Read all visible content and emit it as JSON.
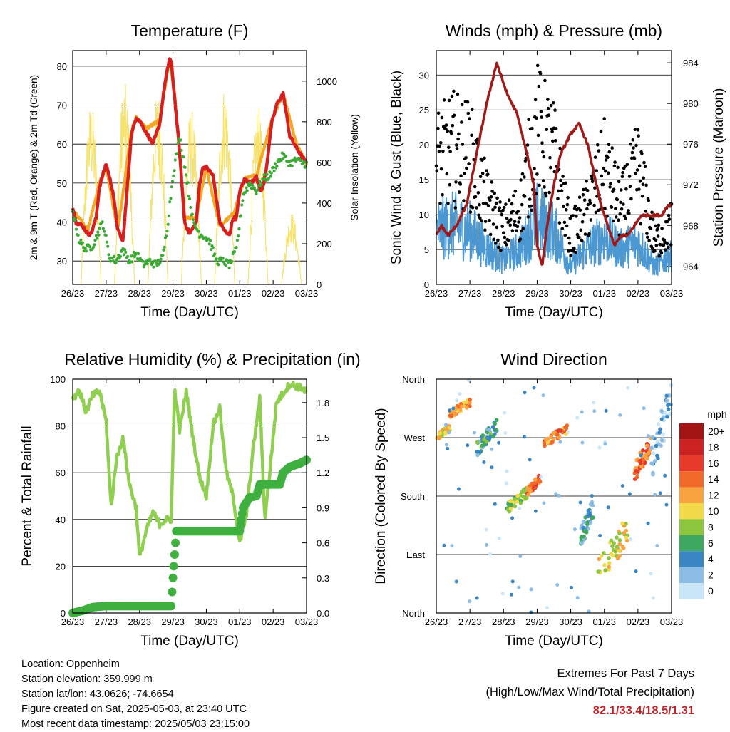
{
  "x_ticks": [
    "26/23",
    "27/23",
    "28/23",
    "29/23",
    "30/23",
    "01/23",
    "02/23",
    "03/23"
  ],
  "xlabel": "Time (Day/UTC)",
  "colors": {
    "red": "#d62020",
    "orange": "#f5a623",
    "green_dew": "#3aaa35",
    "yellow": "#f7e26b",
    "blue": "#4a97d2",
    "black": "#000000",
    "maroon": "#a01a1a",
    "rh": "#8fcf50",
    "precip": "#3fb040"
  },
  "info": {
    "location": "Location: Oppenheim",
    "elevation": "Station elevation: 359.999 m",
    "latlon": "Station lat/lon: 43.0626; -74.6654",
    "created": "Figure created on Sat, 2025-05-03, at 23:40 UTC",
    "recent": "Most recent data timestamp: 2025/05/03 23:15:00"
  },
  "extremes": {
    "line1": "Extremes For Past 7 Days",
    "line2": "(High/Low/Max Wind/Total Precipitation)",
    "value": "82.1/33.4/18.5/1.31"
  },
  "chart_data": [
    {
      "type": "line",
      "title": "Temperature (F)",
      "ylabel": "2m & 9m T (Red, Orange) & 2m Td (Green)",
      "y2label": "Solar Insolation (Yellow)",
      "ylim": [
        24,
        84
      ],
      "yticks": [
        30,
        40,
        50,
        60,
        70,
        80
      ],
      "y2lim": [
        0,
        1150
      ],
      "y2ticks": [
        0,
        200,
        400,
        600,
        800,
        1000
      ],
      "series": [
        {
          "name": "2m T",
          "color": "red",
          "axis": "left",
          "x": [
            0,
            0.1,
            0.3,
            0.45,
            0.55,
            0.7,
            0.8,
            1.0,
            1.2,
            1.35,
            1.5,
            1.6,
            1.75,
            1.9,
            2.0,
            2.2,
            2.4,
            2.6,
            2.75,
            2.9,
            2.95,
            3.05,
            3.2,
            3.35,
            3.5,
            3.7,
            3.8,
            3.9,
            4.0,
            4.2,
            4.4,
            4.6,
            4.7,
            4.8,
            4.9,
            5.0,
            5.15,
            5.35,
            5.5,
            5.6,
            5.7,
            5.8,
            5.95,
            6.1,
            6.3,
            6.5,
            6.7,
            6.85,
            7.0
          ],
          "y": [
            44,
            40,
            39,
            37,
            37,
            41,
            49,
            55,
            48,
            38,
            35,
            45,
            62,
            67,
            66,
            63,
            60,
            65,
            75,
            82,
            81,
            72,
            58,
            40,
            37,
            40,
            50,
            54,
            54,
            52,
            40,
            37,
            37,
            41,
            41,
            48,
            51,
            50,
            52,
            48,
            49,
            54,
            65,
            70,
            73,
            62,
            59,
            57,
            55
          ]
        },
        {
          "name": "9m T",
          "color": "orange",
          "axis": "left",
          "x": [
            0,
            0.45,
            0.8,
            1.0,
            1.35,
            1.75,
            1.9,
            2.2,
            2.6,
            2.9,
            3.05,
            3.35,
            3.7,
            4.0,
            4.4,
            4.8,
            5.15,
            5.5,
            5.95,
            6.3,
            6.7,
            7.0
          ],
          "y": [
            43,
            38,
            50,
            54,
            38,
            63,
            67,
            64,
            66,
            82,
            73,
            41,
            41,
            54,
            39,
            42,
            51,
            52,
            66,
            73,
            60,
            55
          ]
        },
        {
          "name": "2m Td",
          "color": "green_dew",
          "axis": "left",
          "x": [
            0,
            0.2,
            0.4,
            0.6,
            0.9,
            1.1,
            1.3,
            1.5,
            1.7,
            1.9,
            2.1,
            2.3,
            2.5,
            2.7,
            2.85,
            3.0,
            3.2,
            3.4,
            3.6,
            3.8,
            4.0,
            4.1,
            4.3,
            4.5,
            4.7,
            4.9,
            5.1,
            5.3,
            5.5,
            5.7,
            5.9,
            6.1,
            6.3,
            6.5,
            6.7,
            6.9,
            7.0
          ],
          "y": [
            43,
            35,
            33,
            34,
            40,
            31,
            30,
            33,
            30,
            32,
            29,
            30,
            29,
            31,
            40,
            52,
            62,
            52,
            40,
            37,
            36,
            35,
            30,
            30,
            29,
            33,
            47,
            50,
            48,
            51,
            52,
            55,
            57,
            55,
            56,
            55,
            55
          ]
        },
        {
          "name": "Solar Insolation",
          "color": "yellow",
          "axis": "right",
          "peaks_x": [
            0.55,
            1.55,
            2.55,
            3.55,
            4.55,
            5.55,
            6.55
          ],
          "peaks_y": [
            900,
            1000,
            960,
            870,
            990,
            880,
            360
          ]
        }
      ]
    },
    {
      "type": "scatter",
      "title": "Winds (mph) & Pressure (mb)",
      "ylabel": "Sonic Wind & Gust (Blue, Black)",
      "y2label": "Station Pressure (Maroon)",
      "ylim": [
        0,
        33.5
      ],
      "yticks": [
        0,
        5,
        10,
        15,
        20,
        25,
        30
      ],
      "y2lim": [
        962.2,
        985.2
      ],
      "y2ticks": [
        964,
        968,
        972,
        976,
        980,
        984
      ],
      "series": [
        {
          "name": "Gust",
          "color": "black",
          "axis": "left",
          "x": [
            0,
            0.5,
            1.0,
            1.5,
            2.0,
            2.5,
            3.0,
            3.5,
            4.0,
            4.5,
            5.0,
            5.5,
            6.0,
            6.5,
            7.0
          ],
          "y": [
            18,
            20,
            19,
            12,
            8,
            11,
            23,
            19,
            7,
            11,
            17,
            11,
            17,
            6,
            9
          ]
        },
        {
          "name": "Sonic Wind",
          "color": "blue",
          "axis": "left",
          "x": [
            0,
            0.5,
            1.0,
            1.5,
            2.0,
            2.5,
            3.0,
            3.5,
            4.0,
            4.5,
            5.0,
            5.5,
            6.0,
            6.5,
            7.0
          ],
          "y": [
            9,
            10,
            9,
            6,
            4,
            6,
            11,
            9,
            3,
            6,
            8,
            6,
            7,
            3,
            5
          ]
        },
        {
          "name": "Station Pressure",
          "color": "maroon",
          "axis": "right",
          "x": [
            0,
            0.15,
            0.35,
            0.6,
            0.9,
            1.2,
            1.5,
            1.8,
            2.1,
            2.4,
            2.7,
            2.9,
            3.0,
            3.15,
            3.3,
            3.5,
            3.7,
            3.85,
            4.0,
            4.25,
            4.5,
            4.7,
            4.9,
            5.1,
            5.3,
            5.5,
            5.7,
            5.9,
            6.1,
            6.3,
            6.5,
            6.7,
            6.9,
            7.0
          ],
          "y": [
            967,
            968,
            967,
            968,
            970,
            975,
            980,
            984,
            981,
            979,
            975,
            972,
            966,
            964,
            968,
            972,
            975,
            976,
            977,
            978,
            976,
            973,
            970,
            968,
            966,
            967,
            967,
            968,
            969,
            969,
            969,
            969,
            970,
            970
          ]
        }
      ]
    },
    {
      "type": "line",
      "title": "Relative Humidity (%) & Precipitation (in)",
      "ylabel": "Percent & Total Rainfall",
      "ylim": [
        0,
        100
      ],
      "yticks": [
        0,
        20,
        40,
        60,
        80,
        100
      ],
      "y2lim": [
        0,
        2.0
      ],
      "y2ticks": [
        "0.0",
        "0.3",
        "0.6",
        "0.9",
        "1.2",
        "1.5",
        "1.8"
      ],
      "series": [
        {
          "name": "Relative Humidity",
          "color": "rh",
          "axis": "left",
          "x": [
            0,
            0.2,
            0.4,
            0.6,
            0.8,
            1.0,
            1.15,
            1.3,
            1.5,
            1.7,
            1.9,
            2.0,
            2.2,
            2.4,
            2.6,
            2.8,
            2.95,
            3.05,
            3.2,
            3.4,
            3.6,
            3.8,
            4.0,
            4.2,
            4.4,
            4.6,
            4.8,
            5.0,
            5.2,
            5.4,
            5.6,
            5.75,
            5.9,
            6.1,
            6.3,
            6.5,
            6.7,
            6.9,
            7.0
          ],
          "y": [
            92,
            95,
            86,
            93,
            95,
            82,
            45,
            65,
            75,
            55,
            45,
            24,
            35,
            43,
            38,
            40,
            40,
            96,
            78,
            95,
            75,
            58,
            50,
            80,
            88,
            60,
            50,
            30,
            42,
            70,
            92,
            40,
            60,
            90,
            94,
            98,
            97,
            96,
            94
          ]
        },
        {
          "name": "Total Precipitation",
          "color": "precip",
          "axis": "right",
          "x": [
            0,
            0.3,
            0.6,
            1.0,
            1.5,
            2.0,
            2.5,
            2.95,
            3.0,
            3.05,
            3.1,
            4.0,
            4.5,
            5.0,
            5.05,
            5.1,
            5.3,
            5.5,
            5.6,
            6.0,
            6.2,
            6.3,
            6.5,
            6.8,
            7.0
          ],
          "y": [
            0.0,
            0.02,
            0.05,
            0.06,
            0.06,
            0.06,
            0.06,
            0.06,
            0.3,
            0.5,
            0.7,
            0.7,
            0.7,
            0.7,
            0.8,
            0.9,
            0.99,
            1.0,
            1.1,
            1.1,
            1.1,
            1.2,
            1.25,
            1.28,
            1.31
          ]
        }
      ]
    },
    {
      "type": "scatter",
      "title": "Wind Direction",
      "ylabel": "Direction (Colored By Speed)",
      "yticks": [
        "North",
        "East",
        "South",
        "West",
        "North"
      ],
      "ylim": [
        0,
        360
      ],
      "colorbar_title": "mph",
      "colorbar_labels": [
        "20+",
        "18",
        "16",
        "14",
        "12",
        "10",
        "8",
        "6",
        "4",
        "2",
        "0"
      ],
      "colorbar_colors": [
        "#a31515",
        "#cc2222",
        "#e83a2a",
        "#f26a2a",
        "#f9a340",
        "#f1d94a",
        "#8cc63f",
        "#3ea760",
        "#3a86c5",
        "#8bbde6",
        "#c9e6f8"
      ],
      "clusters": [
        {
          "x": [
            0,
            0.4
          ],
          "y": [
            265,
            290
          ],
          "speed": 10
        },
        {
          "x": [
            0.4,
            1.0
          ],
          "y": [
            300,
            330
          ],
          "speed": 12
        },
        {
          "x": [
            1.2,
            1.8
          ],
          "y": [
            240,
            300
          ],
          "speed": 5
        },
        {
          "x": [
            2.1,
            2.7
          ],
          "y": [
            150,
            195
          ],
          "speed": 8
        },
        {
          "x": [
            2.7,
            3.1
          ],
          "y": [
            180,
            215
          ],
          "speed": 14
        },
        {
          "x": [
            3.2,
            3.9
          ],
          "y": [
            255,
            290
          ],
          "speed": 13
        },
        {
          "x": [
            4.3,
            4.7
          ],
          "y": [
            100,
            180
          ],
          "speed": 4
        },
        {
          "x": [
            4.8,
            5.7
          ],
          "y": [
            40,
            150
          ],
          "speed": 10
        },
        {
          "x": [
            5.9,
            6.4
          ],
          "y": [
            200,
            280
          ],
          "speed": 14
        },
        {
          "x": [
            6.4,
            7.0
          ],
          "y": [
            200,
            360
          ],
          "speed": 2
        }
      ]
    }
  ]
}
